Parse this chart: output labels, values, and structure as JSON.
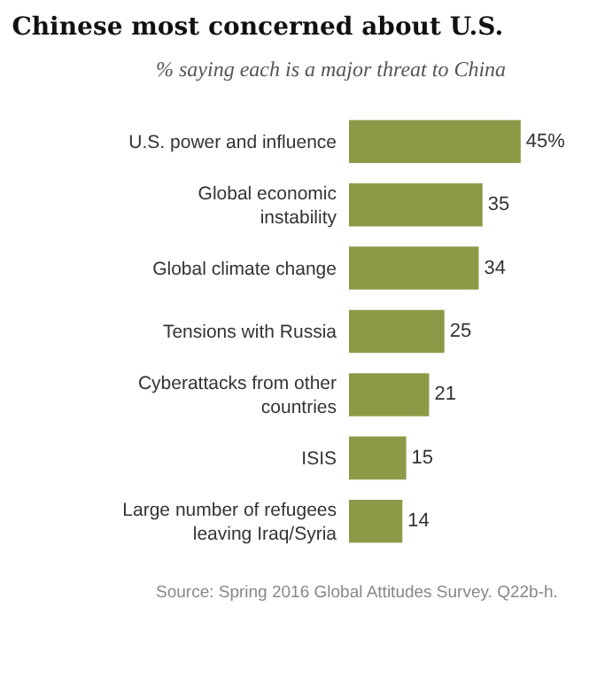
{
  "chart_data": {
    "type": "bar",
    "orientation": "horizontal",
    "title": "Chinese most concerned about U.S.",
    "subtitle": "% saying each is a major threat to China",
    "categories": [
      "U.S. power and influence",
      "Global economic instability",
      "Global climate change",
      "Tensions with Russia",
      "Cyberattacks from other countries",
      "ISIS",
      "Large number of refugees leaving Iraq/Syria"
    ],
    "values": [
      45,
      35,
      34,
      25,
      21,
      15,
      14
    ],
    "value_labels": [
      "45%",
      "35",
      "34",
      "25",
      "21",
      "15",
      "14"
    ],
    "color": "#8c9a48",
    "annotations": [
      "Source: Spring 2016 Global Attitudes Survey. Q22b-h."
    ]
  }
}
